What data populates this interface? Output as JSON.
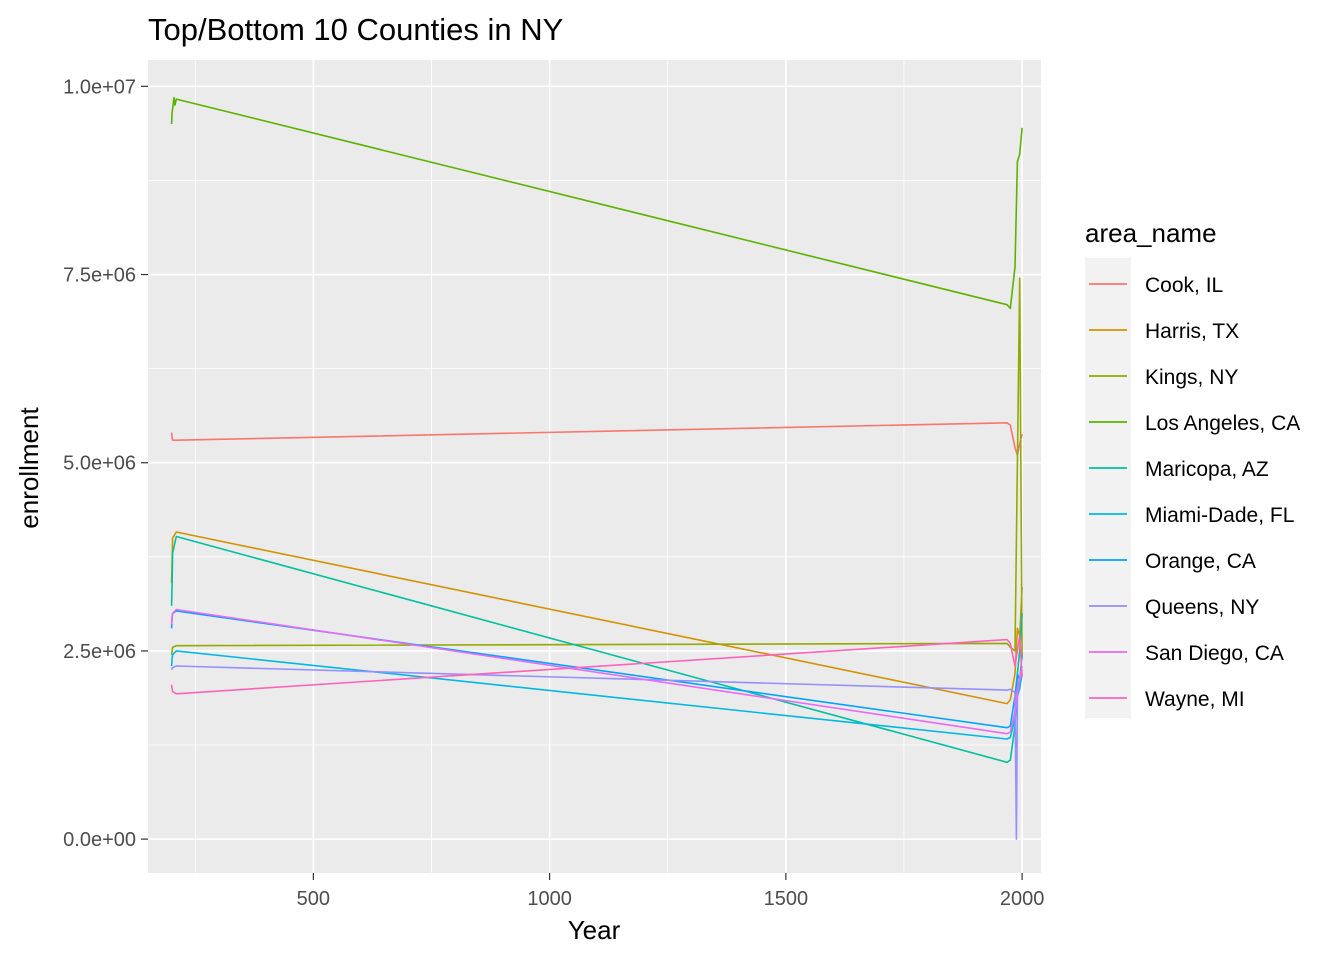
{
  "chart_data": {
    "type": "line",
    "title": "Top/Bottom 10 Counties in NY",
    "xlabel": "Year",
    "ylabel": "enrollment",
    "xlim": [
      150,
      2040
    ],
    "ylim": [
      -450000,
      10350000
    ],
    "x_ticks": [
      500,
      1000,
      1500,
      2000
    ],
    "x_tick_labels": [
      "500",
      "1000",
      "1500",
      "2000"
    ],
    "x_minor_ticks": [
      250,
      750,
      1250,
      1750
    ],
    "y_ticks": [
      0,
      2500000,
      5000000,
      7500000,
      10000000
    ],
    "y_tick_labels": [
      "0.0e+00",
      "2.5e+06",
      "5.0e+06",
      "7.5e+06",
      "1.0e+07"
    ],
    "y_minor_ticks": [
      1250000,
      3750000,
      6250000,
      8750000
    ],
    "grid": true,
    "panel_background": "#ebebeb",
    "legend": {
      "title": "area_name",
      "position": "right"
    },
    "series": [
      {
        "name": "Cook, IL",
        "color": "#F8766D",
        "x": [
          200,
          201,
          202,
          210,
          1968,
          1975,
          1985,
          1990,
          1995,
          2000
        ],
        "y": [
          5400000,
          5330000,
          5300000,
          5300000,
          5530000,
          5500000,
          5200000,
          5100000,
          5250000,
          5380000
        ]
      },
      {
        "name": "Harris, TX",
        "color": "#D39200",
        "x": [
          200,
          201,
          202,
          210,
          1968,
          1975,
          1985,
          1990,
          1995,
          2000
        ],
        "y": [
          3400000,
          3700000,
          4000000,
          4080000,
          1800000,
          1850000,
          2200000,
          2800000,
          2700000,
          3350000
        ]
      },
      {
        "name": "Kings, NY",
        "color": "#93AA00",
        "x": [
          200,
          201,
          202,
          210,
          1968,
          1975,
          1985,
          1990,
          1995,
          2000
        ],
        "y": [
          2450000,
          2500000,
          2550000,
          2570000,
          2600000,
          2550000,
          2500000,
          5000000,
          7450000,
          2400000
        ]
      },
      {
        "name": "Los Angeles, CA",
        "color": "#5BB300",
        "x": [
          200,
          201,
          202,
          205,
          207,
          210,
          1968,
          1975,
          1985,
          1990,
          1995,
          2000
        ],
        "y": [
          9500000,
          9650000,
          9700000,
          9850000,
          9750000,
          9830000,
          7100000,
          7050000,
          7600000,
          9000000,
          9100000,
          9450000
        ]
      },
      {
        "name": "Maricopa, AZ",
        "color": "#00C19F",
        "x": [
          200,
          201,
          202,
          210,
          1968,
          1975,
          1985,
          1990,
          1995,
          2000
        ],
        "y": [
          3100000,
          3400000,
          3800000,
          4020000,
          1020000,
          1050000,
          1500000,
          2200000,
          2500000,
          3000000
        ]
      },
      {
        "name": "Miami-Dade, FL",
        "color": "#00B9E3",
        "x": [
          200,
          201,
          202,
          210,
          1968,
          1975,
          1985,
          1990,
          1995,
          2000
        ],
        "y": [
          2300000,
          2400000,
          2450000,
          2500000,
          1330000,
          1350000,
          1600000,
          1900000,
          2000000,
          2200000
        ]
      },
      {
        "name": "Orange, CA",
        "color": "#00A5FF",
        "x": [
          200,
          201,
          202,
          210,
          1968,
          1975,
          1985,
          1990,
          1995,
          2000
        ],
        "y": [
          2800000,
          2950000,
          3000000,
          3030000,
          1480000,
          1500000,
          1900000,
          2200000,
          2100000,
          2450000
        ]
      },
      {
        "name": "Queens, NY",
        "color": "#9590FF",
        "x": [
          200,
          201,
          202,
          210,
          1968,
          1975,
          1985,
          1988,
          1990,
          1995,
          2000
        ],
        "y": [
          2250000,
          2270000,
          2280000,
          2300000,
          1980000,
          1990000,
          1950000,
          0,
          1900000,
          2100000,
          2250000
        ]
      },
      {
        "name": "San Diego, CA",
        "color": "#E76BF3",
        "x": [
          200,
          201,
          202,
          210,
          1968,
          1975,
          1985,
          1990,
          1995,
          2000
        ],
        "y": [
          2850000,
          2950000,
          3000000,
          3050000,
          1400000,
          1420000,
          1700000,
          2000000,
          2150000,
          2300000
        ]
      },
      {
        "name": "Wayne, MI",
        "color": "#FF62BC",
        "x": [
          200,
          201,
          202,
          210,
          1968,
          1975,
          1985,
          1990,
          1995,
          2000
        ],
        "y": [
          2050000,
          2000000,
          1960000,
          1930000,
          2650000,
          2600000,
          2300000,
          2500000,
          2700000,
          2150000
        ]
      }
    ]
  }
}
